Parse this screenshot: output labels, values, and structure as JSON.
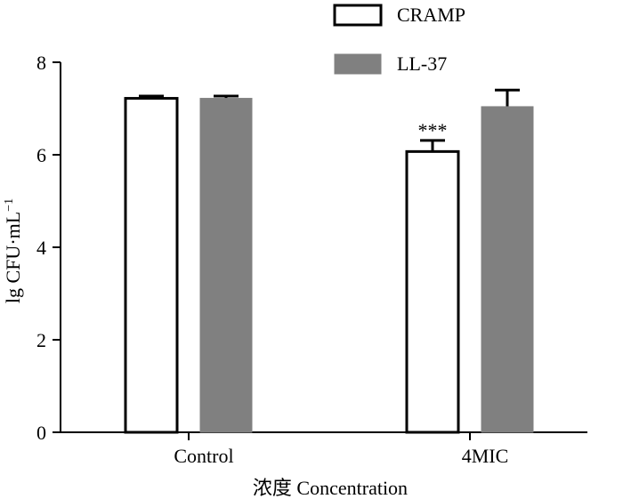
{
  "chart_data": {
    "type": "bar",
    "categories": [
      "Control",
      "4MIC"
    ],
    "series": [
      {
        "name": "CRAMP",
        "values": [
          7.22,
          6.07
        ],
        "errors": [
          0.05,
          0.24
        ],
        "fill": "#ffffff",
        "stroke": "#000000"
      },
      {
        "name": "LL-37",
        "values": [
          7.22,
          7.04
        ],
        "errors": [
          0.05,
          0.36
        ],
        "fill": "#808080",
        "stroke": "#808080"
      }
    ],
    "annotations": [
      {
        "series": "CRAMP",
        "category": "4MIC",
        "text": "***"
      }
    ],
    "ylabel": {
      "main": "lg CFU·mL",
      "superscript": "−1"
    },
    "xlabel": "浓度  Concentration",
    "ylim": [
      0,
      8
    ],
    "yticks": [
      0,
      2,
      4,
      6,
      8
    ],
    "legend_position": "top-center",
    "grid": false
  }
}
